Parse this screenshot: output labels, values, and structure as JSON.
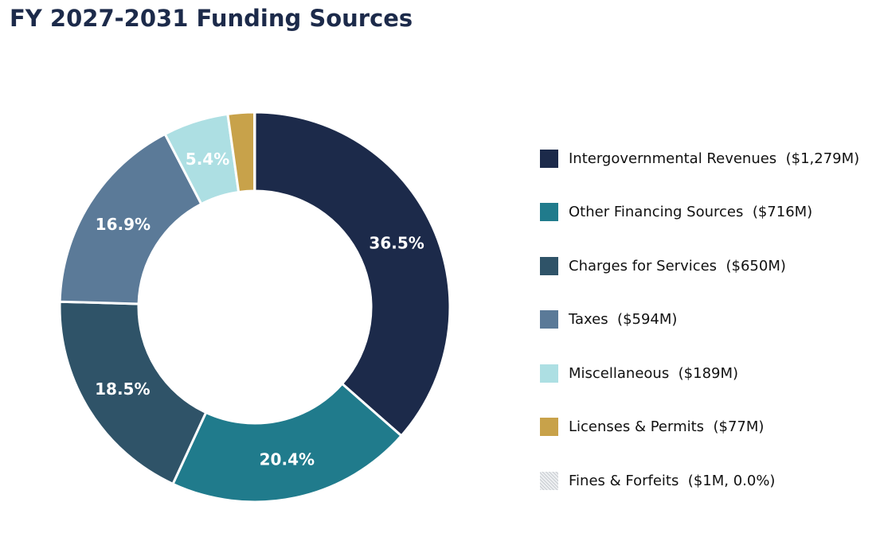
{
  "chart_data": {
    "type": "pie",
    "title": "FY 2027-2031 Funding Sources",
    "units": "$M",
    "slices": [
      {
        "name": "Intergovernmental Revenues",
        "value": 1279,
        "percent_label": "36.5%",
        "legend_text": "Intergovernmental Revenues  ($1,279M)",
        "color": "#1c2a4a"
      },
      {
        "name": "Other Financing Sources",
        "value": 716,
        "percent_label": "20.4%",
        "legend_text": "Other Financing Sources  ($716M)",
        "color": "#207b8c"
      },
      {
        "name": "Charges for Services",
        "value": 650,
        "percent_label": "18.5%",
        "legend_text": "Charges for Services  ($650M)",
        "color": "#2f5368"
      },
      {
        "name": "Taxes",
        "value": 594,
        "percent_label": "16.9%",
        "legend_text": "Taxes  ($594M)",
        "color": "#5b7a98"
      },
      {
        "name": "Miscellaneous",
        "value": 189,
        "percent_label": "5.4%",
        "legend_text": "Miscellaneous  ($189M)",
        "color": "#addfe3"
      },
      {
        "name": "Licenses & Permits",
        "value": 77,
        "percent_label": "",
        "legend_text": "Licenses & Permits  ($77M)",
        "color": "#c8a24a"
      },
      {
        "name": "Fines & Forfeits",
        "value": 1,
        "percent_label": "",
        "legend_text": "Fines & Forfeits  ($1M, 0.0%)",
        "color": "#d6d9dd",
        "hatched": true
      }
    ],
    "donut": true,
    "start_angle": "12 o'clock",
    "direction": "clockwise",
    "legend_position": "right"
  }
}
